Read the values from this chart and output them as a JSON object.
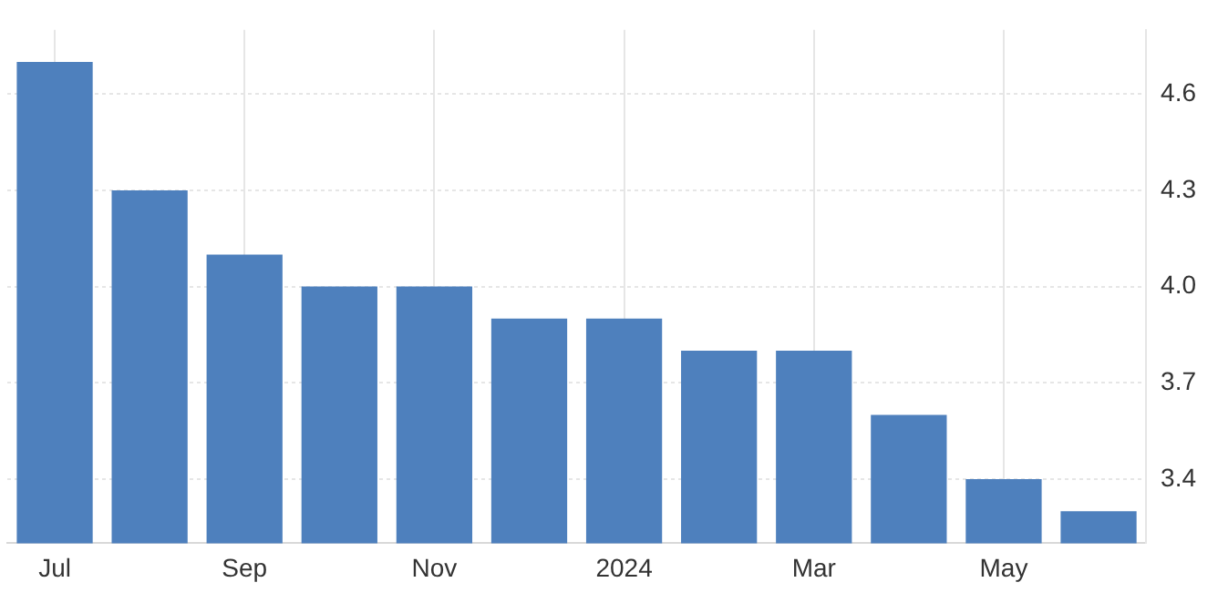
{
  "chart_data": {
    "type": "bar",
    "categories": [
      "Jul",
      null,
      "Sep",
      null,
      "Nov",
      null,
      "2024",
      null,
      "Mar",
      null,
      "May",
      null
    ],
    "values": [
      4.7,
      4.3,
      4.1,
      4.0,
      4.0,
      3.9,
      3.9,
      3.8,
      3.8,
      3.6,
      3.4,
      3.3
    ],
    "color": "#4e80bd",
    "ylim": [
      3.2,
      4.8
    ],
    "yticks": [
      3.4,
      3.7,
      {
        "value": 4,
        "label": "4.0"
      },
      4.3,
      4.6
    ],
    "grid": true,
    "legend": false
  }
}
